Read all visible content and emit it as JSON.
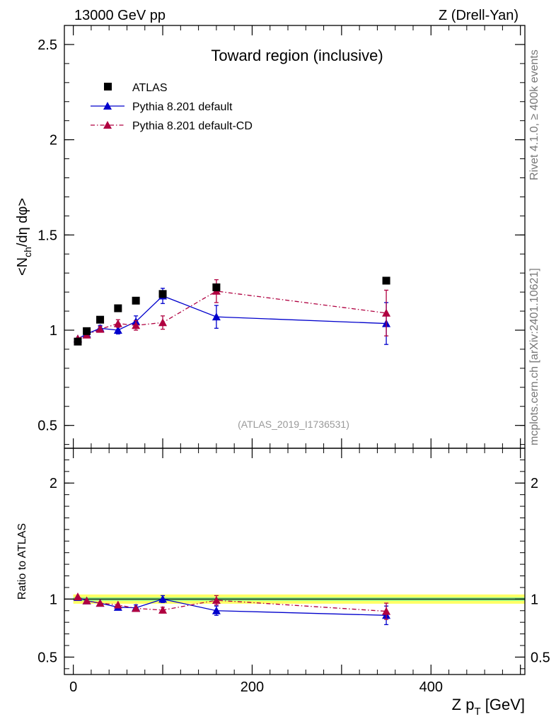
{
  "header": {
    "left": "13000 GeV pp",
    "right": "Z (Drell-Yan)"
  },
  "side_labels": {
    "rivet": "Rivet 4.1.0, ≥ 400k events",
    "mcplots": "mcplots.cern.ch [arXiv:2401.10621]"
  },
  "chart_data": [
    {
      "panel": "main",
      "type": "scatter",
      "title": "Toward region (inclusive)",
      "ylabel": "<N_ch/dη dφ>",
      "ylabel_parts": {
        "pre": "<N",
        "sub": "ch",
        "post": "/dη dφ>"
      },
      "analysis_tag": "(ATLAS_2019_I1736531)",
      "xlim": [
        -10,
        505
      ],
      "ylim": [
        0.38,
        2.6
      ],
      "yticks": [
        0.5,
        1,
        1.5,
        2,
        2.5
      ],
      "ytick_labels": [
        "0.5",
        "1",
        "1.5",
        "2",
        "2.5"
      ],
      "legend": [
        "ATLAS",
        "Pythia 8.201 default",
        "Pythia 8.201 default-CD"
      ],
      "series": [
        {
          "name": "ATLAS",
          "color": "#000000",
          "marker": "square",
          "x": [
            5,
            15,
            30,
            50,
            70,
            100,
            160,
            350
          ],
          "y": [
            0.94,
            0.995,
            1.055,
            1.115,
            1.155,
            1.19,
            1.225,
            1.26
          ],
          "err": [
            0.01,
            0.01,
            0.01,
            0.01,
            0.01,
            0.01,
            0.01,
            0.01
          ]
        },
        {
          "name": "Pythia 8.201 default",
          "color": "#0000cc",
          "marker": "triangle",
          "line": "solid",
          "x": [
            5,
            15,
            30,
            50,
            70,
            100,
            160,
            350
          ],
          "y": [
            0.955,
            0.98,
            1.01,
            1.0,
            1.045,
            1.18,
            1.07,
            1.035
          ],
          "err": [
            0.01,
            0.01,
            0.015,
            0.02,
            0.03,
            0.04,
            0.06,
            0.11
          ]
        },
        {
          "name": "Pythia 8.201 default-CD",
          "color": "#b00040",
          "marker": "triangle",
          "line": "dashdot",
          "x": [
            5,
            15,
            30,
            50,
            70,
            100,
            160,
            350
          ],
          "y": [
            0.955,
            0.975,
            1.005,
            1.035,
            1.025,
            1.04,
            1.205,
            1.09
          ],
          "err": [
            0.01,
            0.01,
            0.015,
            0.02,
            0.025,
            0.035,
            0.06,
            0.12
          ]
        }
      ]
    },
    {
      "panel": "ratio",
      "type": "scatter",
      "xlabel": "Z p_T [GeV]",
      "xlabel_parts": {
        "pre": "Z p",
        "sub": "T",
        "post": " [GeV]"
      },
      "ylabel": "Ratio to ATLAS",
      "xlim": [
        -10,
        505
      ],
      "ylim": [
        0.35,
        2.3
      ],
      "xticks": [
        0,
        200,
        400
      ],
      "xtick_labels": [
        "0",
        "200",
        "400"
      ],
      "yticks": [
        0.5,
        1,
        2
      ],
      "ytick_labels": [
        "0.5",
        "1",
        "2"
      ],
      "bands": [
        {
          "name": "ATLAS total uncertainty",
          "color": "#ffff66",
          "lo": 0.96,
          "hi": 1.04
        },
        {
          "name": "ATLAS stat uncertainty",
          "color": "#88ee88",
          "lo": 0.985,
          "hi": 1.015
        }
      ],
      "series": [
        {
          "name": "Pythia 8.201 default",
          "color": "#0000cc",
          "marker": "triangle",
          "line": "solid",
          "x": [
            5,
            15,
            30,
            50,
            70,
            100,
            160,
            350
          ],
          "y": [
            1.015,
            0.985,
            0.965,
            0.93,
            0.925,
            1.0,
            0.9,
            0.86
          ],
          "err": [
            0.01,
            0.01,
            0.015,
            0.02,
            0.025,
            0.03,
            0.04,
            0.08
          ]
        },
        {
          "name": "Pythia 8.201 default-CD",
          "color": "#b00040",
          "marker": "triangle",
          "line": "dashdot",
          "x": [
            5,
            15,
            30,
            50,
            70,
            100,
            160,
            350
          ],
          "y": [
            1.02,
            0.985,
            0.965,
            0.95,
            0.92,
            0.905,
            0.99,
            0.895
          ],
          "err": [
            0.01,
            0.01,
            0.015,
            0.02,
            0.02,
            0.025,
            0.04,
            0.07
          ]
        }
      ]
    }
  ]
}
